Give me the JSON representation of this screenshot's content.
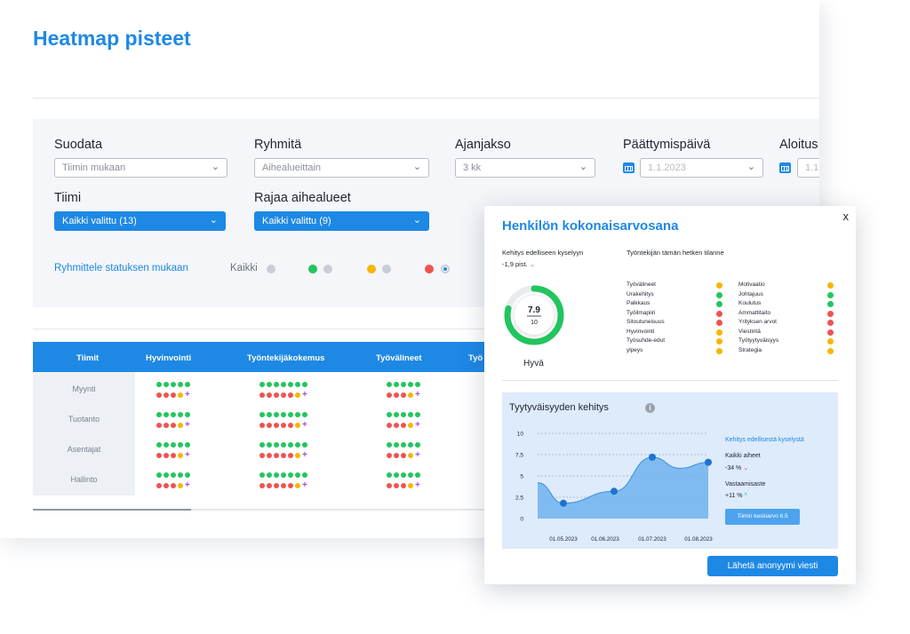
{
  "page": {
    "title": "Heatmap pisteet"
  },
  "filters": {
    "suodata": {
      "label": "Suodata",
      "value": "Tiimin mukaan"
    },
    "ryhmita": {
      "label": "Ryhmitä",
      "value": "Aihealueittain"
    },
    "ajanjakso": {
      "label": "Ajanjakso",
      "value": "3 kk"
    },
    "paattymis": {
      "label": "Päättymispäivä",
      "value": "1.1.2023"
    },
    "aloitus": {
      "label": "Aloitus",
      "value": "1.1.2"
    },
    "tiimi": {
      "label": "Tiimi",
      "value": "Kaikki valittu (13)"
    },
    "rajaa": {
      "label": "Rajaa aihealueet",
      "value": "Kaikki valittu (9)"
    }
  },
  "status_group": {
    "label": "Ryhmittele statuksen mukaan",
    "all_label": "Kaikki",
    "colors": {
      "green": "#22c55e",
      "yellow": "#f5b700",
      "red": "#ef5350",
      "grey": "#c9ced6",
      "blue": "#1e88e5"
    }
  },
  "table": {
    "headers": [
      "Tiimit",
      "Hyvinvointi",
      "Työntekijäkokemus",
      "Työvälineet",
      "Työ"
    ],
    "rows": [
      "Myynti",
      "Tuotanto",
      "Asentajat",
      "Hallinto"
    ]
  },
  "modal": {
    "title": "Henkilön kokonaisarvosana",
    "close": "x",
    "trend_label": "Kehitys edelliseen kyselyyn",
    "trend_value": "-1,9 pist.",
    "status_label": "Työntekijän tämän hetken tilanne",
    "score": "7.9",
    "score_max": "10",
    "score_fraction": 0.79,
    "score_word": "Hyvä",
    "left_items": [
      {
        "name": "Työvälineet",
        "status": "yellow"
      },
      {
        "name": "Urakehitys",
        "status": "green"
      },
      {
        "name": "Palkkaus",
        "status": "green"
      },
      {
        "name": "Työilmapiiri",
        "status": "red"
      },
      {
        "name": "Sitoutuneisuus",
        "status": "red"
      },
      {
        "name": "Hyvinvointi",
        "status": "yellow"
      },
      {
        "name": "Työsuhde-edut",
        "status": "yellow"
      },
      {
        "name": "ylpeys",
        "status": "yellow"
      }
    ],
    "right_items": [
      {
        "name": "Motivaatio",
        "status": "yellow"
      },
      {
        "name": "Johtajuus",
        "status": "green"
      },
      {
        "name": "Koulutus",
        "status": "green"
      },
      {
        "name": "Ammattitaito",
        "status": "red"
      },
      {
        "name": "Yrityksen arvot",
        "status": "red"
      },
      {
        "name": "Viestintä",
        "status": "red"
      },
      {
        "name": "Työtyytyväisyys",
        "status": "yellow"
      },
      {
        "name": "Strategia",
        "status": "yellow"
      }
    ],
    "send_button": "Lähetä anonyymi viesti"
  },
  "satisfaction": {
    "title": "Tyytyväisyyden kehitys",
    "info_icon": "info-icon",
    "legend_title": "Kehitys edellisestä kyselystä",
    "all_topics_label": "Kaikki aiheet",
    "all_topics_value": "-34 %",
    "response_label": "Vastaamisaste",
    "response_value": "+11 %",
    "team_avg_button": "Tiimin keskiarvo 6.5"
  },
  "chart_data": {
    "type": "area",
    "x": [
      "01.05.2023",
      "01.06.2023",
      "01.07.2023",
      "01.08.2023"
    ],
    "ylim": [
      0,
      10
    ],
    "yticks": [
      "0",
      "2.5",
      "5",
      "7.5",
      "10"
    ],
    "series": [
      {
        "values": [
          1.8,
          3.2,
          7.2,
          6.6
        ]
      }
    ]
  }
}
